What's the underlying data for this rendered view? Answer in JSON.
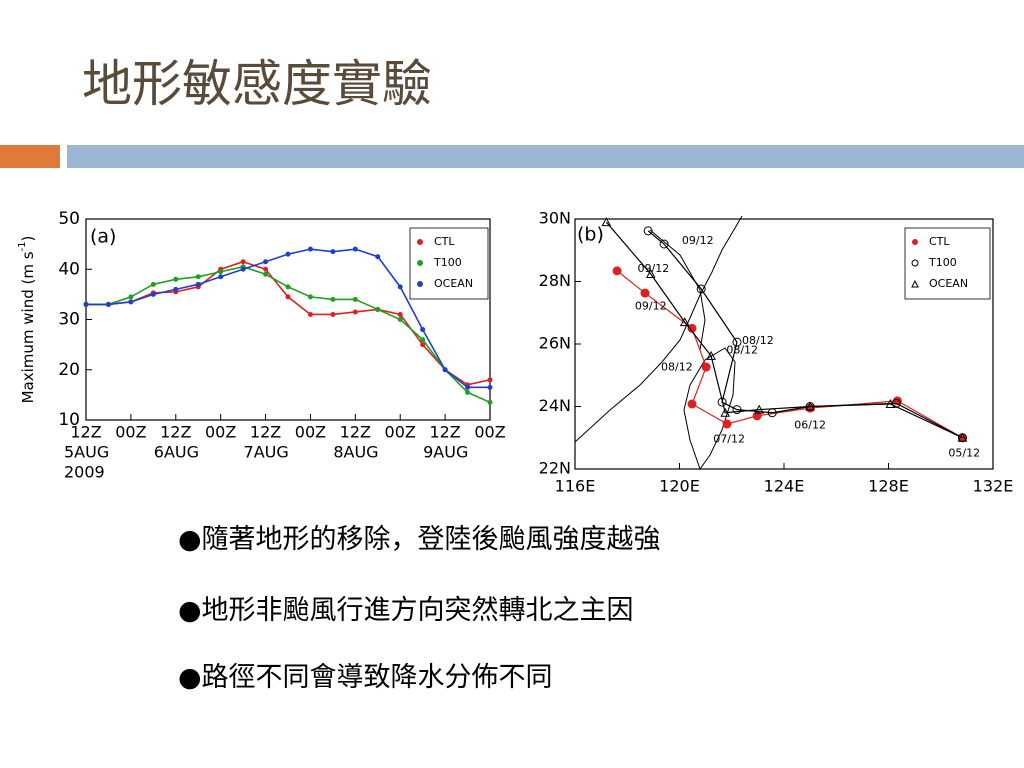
{
  "title": "地形敏感度實驗",
  "bullets": [
    "●隨著地形的移除，登陸後颱風強度越強",
    "●地形非颱風行進方向突然轉北之主因",
    "●路徑不同會導致降水分佈不同"
  ],
  "chart_data": [
    {
      "type": "line",
      "panel_label": "(a)",
      "y_label": "Maximum wind (m s",
      "y_label_sup": "-1",
      "y_label_end": ")",
      "categories": [
        "12Z",
        null,
        "00Z",
        null,
        "12Z",
        null,
        "00Z",
        null,
        "12Z",
        null,
        "00Z",
        null,
        "12Z",
        null,
        "00Z",
        null,
        "12Z",
        null,
        "00Z"
      ],
      "date_labels": [
        "5AUG",
        null,
        null,
        null,
        "6AUG",
        null,
        null,
        null,
        "7AUG",
        null,
        null,
        null,
        "8AUG",
        null,
        null,
        null,
        "9AUG",
        null,
        null
      ],
      "year_label": "2009",
      "ylim": [
        10,
        50
      ],
      "yticks": [
        10,
        20,
        30,
        40,
        50
      ],
      "legend": "upper right",
      "series": [
        {
          "name": "CTL",
          "color": "#e02020",
          "values": [
            33,
            33,
            33.5,
            35.3,
            35.5,
            36.5,
            40,
            41.5,
            40,
            34.5,
            31,
            31,
            31.5,
            32,
            31,
            25,
            20,
            17,
            18
          ]
        },
        {
          "name": "T100",
          "color": "#20a020",
          "values": [
            33,
            33,
            34.5,
            37,
            38,
            38.5,
            39.5,
            40.5,
            39,
            36.5,
            34.5,
            34,
            34,
            32,
            30,
            26,
            20,
            15.5,
            13.5
          ]
        },
        {
          "name": "OCEAN",
          "color": "#1f3fcf",
          "values": [
            33,
            33,
            33.5,
            35,
            36,
            37,
            38.5,
            40,
            41.5,
            43,
            44,
            43.5,
            44,
            42.5,
            36.5,
            28,
            20,
            16.5,
            16.5
          ]
        }
      ]
    },
    {
      "type": "track",
      "panel_label": "(b)",
      "xlim": [
        116,
        132
      ],
      "xticks": [
        {
          "value": 116,
          "label": "116E"
        },
        {
          "value": 120,
          "label": "120E"
        },
        {
          "value": 124,
          "label": "124E"
        },
        {
          "value": 128,
          "label": "128E"
        },
        {
          "value": 132,
          "label": "132E"
        }
      ],
      "ylim": [
        22,
        30
      ],
      "yticks": [
        {
          "value": 22,
          "label": "22N"
        },
        {
          "value": 24,
          "label": "24N"
        },
        {
          "value": 26,
          "label": "26N"
        },
        {
          "value": 28,
          "label": "28N"
        },
        {
          "value": 30,
          "label": "30N"
        }
      ],
      "legend": "upper right",
      "series": [
        {
          "name": "CTL",
          "color": "#e02020",
          "marker": "dot",
          "x": [
            130.83,
            128.34,
            125.0,
            122.97,
            121.82,
            120.48,
            121.02,
            120.48,
            118.68,
            117.61
          ],
          "values": [
            23.0,
            24.18,
            23.95,
            23.7,
            23.44,
            24.08,
            25.26,
            26.5,
            27.63,
            28.34
          ]
        },
        {
          "name": "T100",
          "color": "#000000",
          "marker": "circle",
          "x": [
            130.83,
            128.3,
            125.0,
            123.55,
            122.2,
            121.63,
            122.2,
            120.83,
            119.41,
            118.8
          ],
          "values": [
            23.0,
            24.1,
            24.0,
            23.8,
            23.9,
            24.14,
            26.06,
            27.76,
            29.2,
            29.62
          ]
        },
        {
          "name": "OCEAN",
          "color": "#000000",
          "marker": "triangle",
          "x": [
            130.83,
            128.07,
            125.0,
            123.05,
            121.75,
            121.21,
            120.2,
            118.9,
            117.2
          ],
          "values": [
            23.0,
            24.08,
            24.0,
            23.9,
            23.8,
            25.62,
            26.7,
            28.24,
            29.9
          ]
        }
      ],
      "annotations": [
        {
          "text": "05/12",
          "x": 130.9,
          "y": 22.5
        },
        {
          "text": "06/12",
          "x": 125.0,
          "y": 23.4
        },
        {
          "text": "07/12",
          "x": 121.9,
          "y": 22.95
        },
        {
          "text": "08/12",
          "x": 119.9,
          "y": 25.25
        },
        {
          "text": "08/12",
          "x": 122.4,
          "y": 25.8
        },
        {
          "text": "08/12",
          "x": 123.0,
          "y": 26.1
        },
        {
          "text": "09/12",
          "x": 118.9,
          "y": 27.2
        },
        {
          "text": "09/12",
          "x": 119.0,
          "y": 28.4
        },
        {
          "text": "09/12",
          "x": 120.7,
          "y": 29.3
        }
      ]
    }
  ]
}
